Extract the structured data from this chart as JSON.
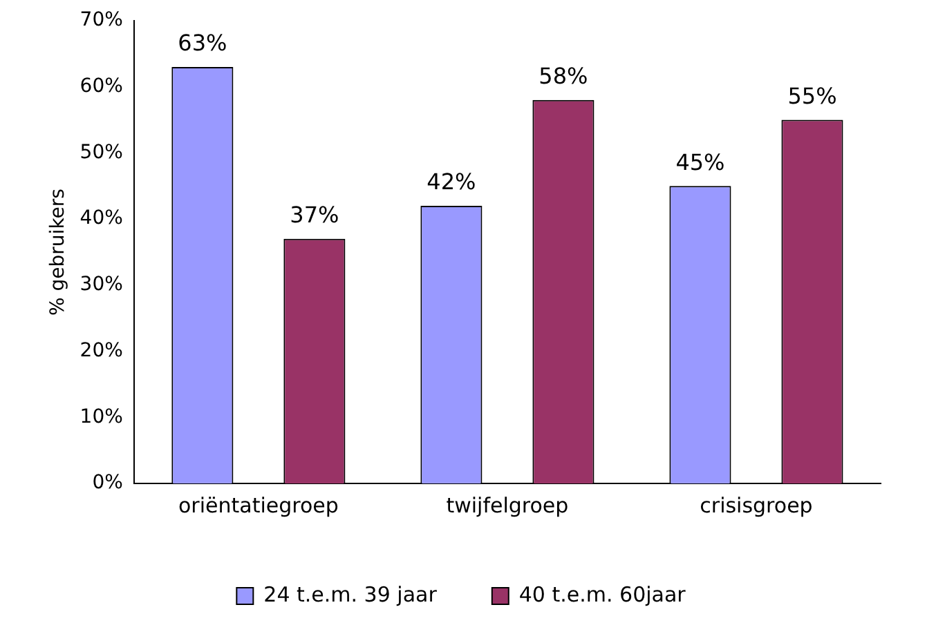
{
  "chart_data": {
    "type": "bar",
    "ylabel": "% gebruikers",
    "categories": [
      "oriëntatiegroep",
      "twijfelgroep",
      "crisisgroep"
    ],
    "series": [
      {
        "name": "24 t.e.m. 39 jaar",
        "color": "#9999ff",
        "values": [
          63,
          42,
          45
        ],
        "value_labels": [
          "63%",
          "42%",
          "45%"
        ]
      },
      {
        "name": "40 t.e.m. 60jaar",
        "color": "#993366",
        "values": [
          37,
          58,
          55
        ],
        "value_labels": [
          "37%",
          "58%",
          "55%"
        ]
      }
    ],
    "ylim": [
      0,
      70
    ],
    "yticks": [
      {
        "value": 0,
        "label": "0%"
      },
      {
        "value": 10,
        "label": "10%"
      },
      {
        "value": 20,
        "label": "20%"
      },
      {
        "value": 30,
        "label": "30%"
      },
      {
        "value": 40,
        "label": "40%"
      },
      {
        "value": 50,
        "label": "50%"
      },
      {
        "value": 60,
        "label": "60%"
      },
      {
        "value": 70,
        "label": "70%"
      }
    ],
    "grid": false,
    "legend": "bottom"
  }
}
